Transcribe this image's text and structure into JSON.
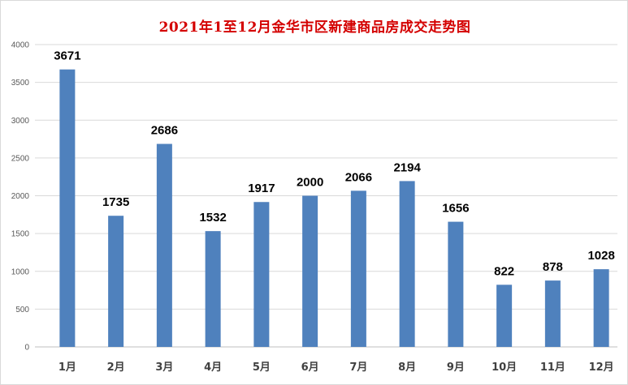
{
  "chart_data": {
    "type": "bar",
    "title": "2021年1至12月金华市区新建商品房成交走势图",
    "categories": [
      "1月",
      "2月",
      "3月",
      "4月",
      "5月",
      "6月",
      "7月",
      "8月",
      "9月",
      "10月",
      "11月",
      "12月"
    ],
    "values": [
      3671,
      1735,
      2686,
      1532,
      1917,
      2000,
      2066,
      2194,
      1656,
      822,
      878,
      1028
    ],
    "ylim": [
      0,
      4000
    ],
    "yticks": [
      0,
      500,
      1000,
      1500,
      2000,
      2500,
      3000,
      3500,
      4000
    ],
    "grid": true,
    "bar_color": "#4f81bd",
    "title_color": "#d40000",
    "xlabel": "",
    "ylabel": ""
  }
}
